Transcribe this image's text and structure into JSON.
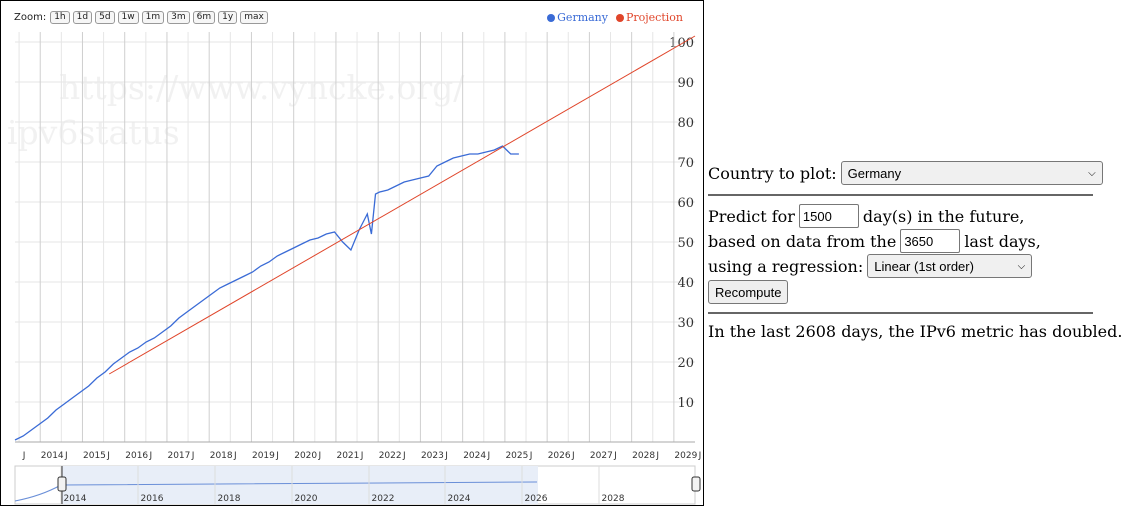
{
  "zoom": {
    "label": "Zoom:",
    "buttons": [
      "1h",
      "1d",
      "5d",
      "1w",
      "1m",
      "3m",
      "6m",
      "1y",
      "max"
    ]
  },
  "legend": [
    {
      "name": "Germany",
      "color": "#3a6bd6"
    },
    {
      "name": "Projection",
      "color": "#e0452a"
    }
  ],
  "watermark": {
    "line1": "https://www.vyncke.org/",
    "line2": "ipv6status"
  },
  "chart_data": {
    "type": "line",
    "x_axis_labels": [
      "J",
      "2014",
      "J",
      "2015",
      "J",
      "2016",
      "J",
      "2017",
      "J",
      "2018",
      "J",
      "2019",
      "J",
      "2020",
      "J",
      "2021",
      "J",
      "2022",
      "J",
      "2023",
      "J",
      "2024",
      "J",
      "2025",
      "J",
      "2026",
      "J",
      "2027",
      "J",
      "2028",
      "J",
      "2029",
      "J"
    ],
    "y_ticks": [
      10,
      20,
      30,
      40,
      50,
      60,
      70,
      80,
      90,
      100
    ],
    "ylim": [
      0,
      100
    ],
    "xlim": [
      2013.4,
      2030.0
    ],
    "grid": true,
    "legend_position": "top-right",
    "series": [
      {
        "name": "Germany",
        "color": "#3a6bd6",
        "x": [
          2013.4,
          2013.6,
          2013.8,
          2014.0,
          2014.2,
          2014.4,
          2014.6,
          2014.8,
          2015.0,
          2015.2,
          2015.4,
          2015.6,
          2015.8,
          2016.0,
          2016.2,
          2016.4,
          2016.6,
          2016.8,
          2017.0,
          2017.2,
          2017.4,
          2017.6,
          2017.8,
          2018.0,
          2018.2,
          2018.4,
          2018.6,
          2018.8,
          2019.0,
          2019.2,
          2019.4,
          2019.6,
          2019.8,
          2020.0,
          2020.2,
          2020.4,
          2020.6,
          2020.8,
          2021.0,
          2021.2,
          2021.4,
          2021.6,
          2021.8,
          2021.9,
          2022.0,
          2022.1,
          2022.2,
          2022.3,
          2022.5,
          2022.7,
          2022.9,
          2023.1,
          2023.3,
          2023.5,
          2023.7,
          2023.9,
          2024.1,
          2024.3,
          2024.5,
          2024.7,
          2024.9,
          2025.1,
          2025.3,
          2025.5,
          2025.7
        ],
        "y": [
          0.5,
          1.5,
          3,
          4.5,
          6,
          8,
          9.5,
          11,
          12.5,
          14,
          16,
          17.5,
          19.5,
          21,
          22.5,
          23.5,
          25,
          26,
          27.5,
          29,
          31,
          32.5,
          34,
          35.5,
          37,
          38.5,
          39.5,
          40.5,
          41.5,
          42.5,
          44,
          45,
          46.5,
          47.5,
          48.5,
          49.5,
          50.5,
          51,
          52,
          52.5,
          50,
          48,
          53,
          55,
          57,
          52,
          62,
          62.5,
          63,
          64,
          65,
          65.5,
          66,
          66.5,
          69,
          70,
          71,
          71.5,
          72,
          72,
          72.5,
          73,
          74,
          72,
          72
        ]
      },
      {
        "name": "Projection",
        "color": "#e0452a",
        "x": [
          2015.7,
          2030.0
        ],
        "y": [
          17,
          101.5
        ]
      }
    ]
  },
  "navigator": {
    "labels": [
      "2014",
      "2016",
      "2018",
      "2020",
      "2022",
      "2024",
      "2026",
      "2028"
    ]
  },
  "panel": {
    "country_label": "Country to plot:",
    "country_value": "Germany",
    "predict_prefix": "Predict for",
    "predict_value": "1500",
    "predict_suffix": "day(s) in the future,",
    "based_prefix": "based on data from the",
    "based_value": "3650",
    "based_suffix": "last days,",
    "regression_label": "using a regression:",
    "regression_value": "Linear (1st order)",
    "recompute_label": "Recompute",
    "result_text": "In the last 2608 days, the IPv6 metric has doubled."
  }
}
